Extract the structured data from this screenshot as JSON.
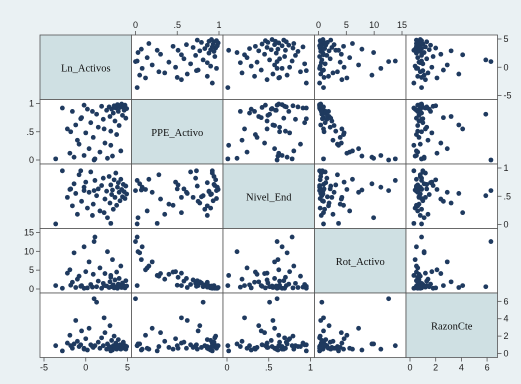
{
  "colors": {
    "outer_background": "#eaf1f3",
    "plot_background": "#ffffff",
    "diagonal_fill": "#cfe0e3",
    "frame": "#555555",
    "marker": "#1f3a5f"
  },
  "chart_data": {
    "type": "scatter",
    "matrix": true,
    "variables": [
      "Ln_Activos",
      "PPE_Activo",
      "Nivel_End",
      "Rot_Activo",
      "RazonCte"
    ],
    "ticks": [
      {
        "var": "Ln_Activos",
        "values": [
          -5,
          0,
          5
        ],
        "labels": [
          "-5",
          "0",
          "5"
        ]
      },
      {
        "var": "PPE_Activo",
        "values": [
          0,
          0.5,
          1
        ],
        "labels": [
          "0",
          ".5",
          "1"
        ]
      },
      {
        "var": "Nivel_End",
        "values": [
          0,
          0.5,
          1
        ],
        "labels": [
          "0",
          ".5",
          "1"
        ]
      },
      {
        "var": "Rot_Activo",
        "values": [
          0,
          5,
          10,
          15
        ],
        "labels": [
          "0",
          "5",
          "10",
          "15"
        ]
      },
      {
        "var": "RazonCte",
        "values": [
          0,
          2,
          4,
          6
        ],
        "labels": [
          "0",
          "2",
          "4",
          "6"
        ]
      }
    ],
    "ranges": {
      "Ln_Activos": [
        -5,
        5
      ],
      "PPE_Activo": [
        0,
        1
      ],
      "Nivel_End": [
        0,
        1
      ],
      "Rot_Activo": [
        0,
        15
      ],
      "RazonCte": [
        0,
        6.5
      ]
    },
    "grid": false,
    "observations": [
      [
        -3.6,
        0.02,
        0.01,
        0.9,
        0.9
      ],
      [
        -2.8,
        0.92,
        0.95,
        0.2,
        0.3
      ],
      [
        -2.2,
        0.55,
        0.48,
        4.2,
        1.2
      ],
      [
        -1.9,
        0.12,
        0.62,
        5.1,
        2.1
      ],
      [
        -1.6,
        0.86,
        0.33,
        1.8,
        0.6
      ],
      [
        -1.4,
        0.05,
        0.72,
        9.6,
        1.1
      ],
      [
        -1.2,
        0.62,
        0.55,
        0.4,
        3.8
      ],
      [
        -1.0,
        0.35,
        0.18,
        2.6,
        1.4
      ],
      [
        -0.8,
        0.28,
        0.88,
        3.4,
        0.8
      ],
      [
        -0.5,
        0.75,
        0.41,
        0.9,
        2.6
      ],
      [
        -0.2,
        0.08,
        0.66,
        11.2,
        0.5
      ],
      [
        0.0,
        0.48,
        0.75,
        4.6,
        1.7
      ],
      [
        0.2,
        0.9,
        0.29,
        0.3,
        0.4
      ],
      [
        0.4,
        0.2,
        0.57,
        7.2,
        2.9
      ],
      [
        0.6,
        0.66,
        0.93,
        1.2,
        1.0
      ],
      [
        0.9,
        0.4,
        0.36,
        3.9,
        0.7
      ],
      [
        1.1,
        0.02,
        0.78,
        13.8,
        0.9
      ],
      [
        1.3,
        0.81,
        0.51,
        0.6,
        5.9
      ],
      [
        1.5,
        0.58,
        0.63,
        2.1,
        1.3
      ],
      [
        1.7,
        0.14,
        0.24,
        5.6,
        0.6
      ],
      [
        1.9,
        0.95,
        0.69,
        0.2,
        1.8
      ],
      [
        2.1,
        0.72,
        0.82,
        1.5,
        0.9
      ],
      [
        2.3,
        0.3,
        0.45,
        4.1,
        2.4
      ],
      [
        2.5,
        0.88,
        0.59,
        0.8,
        0.5
      ],
      [
        2.6,
        0.03,
        0.12,
        9.9,
        1.1
      ],
      [
        2.8,
        0.94,
        0.85,
        0.4,
        0.8
      ],
      [
        2.9,
        0.77,
        0.38,
        1.9,
        3.2
      ],
      [
        3.0,
        0.51,
        0.7,
        3.1,
        0.6
      ],
      [
        3.1,
        0.9,
        0.53,
        0.6,
        1.5
      ],
      [
        3.2,
        0.07,
        0.61,
        7.8,
        0.4
      ],
      [
        3.3,
        0.83,
        0.27,
        1.1,
        0.9
      ],
      [
        3.4,
        0.96,
        0.79,
        0.3,
        2.0
      ],
      [
        3.5,
        0.69,
        0.48,
        2.4,
        0.7
      ],
      [
        3.6,
        0.92,
        0.91,
        0.5,
        1.2
      ],
      [
        3.7,
        0.45,
        0.34,
        4.5,
        0.5
      ],
      [
        3.8,
        0.98,
        0.66,
        0.2,
        0.8
      ],
      [
        3.9,
        0.86,
        0.74,
        1.3,
        1.6
      ],
      [
        4.0,
        0.61,
        0.57,
        2.8,
        0.6
      ],
      [
        4.1,
        0.93,
        0.42,
        0.7,
        1.0
      ],
      [
        4.2,
        0.16,
        0.8,
        6.1,
        0.5
      ],
      [
        4.3,
        0.99,
        0.62,
        0.4,
        0.9
      ],
      [
        4.4,
        0.79,
        0.49,
        1.6,
        0.7
      ],
      [
        4.5,
        0.94,
        0.71,
        0.9,
        1.3
      ],
      [
        4.6,
        0.88,
        0.58,
        0.5,
        0.6
      ],
      [
        4.7,
        0.97,
        0.46,
        0.3,
        0.9
      ],
      [
        4.8,
        0.74,
        0.68,
        2.2,
        0.5
      ],
      [
        4.9,
        0.91,
        0.54,
        0.8,
        0.8
      ],
      [
        3.0,
        0.26,
        0.02,
        3.6,
        0.3
      ],
      [
        1.0,
        0.0,
        0.6,
        12.6,
        6.3
      ],
      [
        -0.6,
        0.73,
        0.95,
        0.7,
        1.0
      ],
      [
        -1.8,
        0.5,
        0.63,
        1.0,
        0.9
      ],
      [
        2.2,
        0.55,
        0.21,
        0.9,
        4.1
      ],
      [
        0.8,
        0.86,
        0.16,
        0.5,
        0.8
      ],
      [
        -0.2,
        0.97,
        0.6,
        0.2,
        0.6
      ]
    ]
  }
}
